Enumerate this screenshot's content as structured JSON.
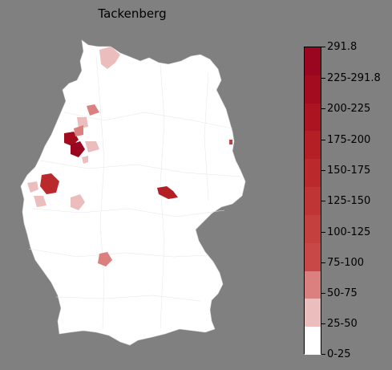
{
  "title": "Tackenberg",
  "legend": {
    "labels": [
      "0-25",
      "25-50",
      "50-75",
      "75-100",
      "100-125",
      "125-150",
      "150-175",
      "175-200",
      "200-225",
      "225-291.8",
      "291.8"
    ],
    "colors": [
      "#ffffff",
      "#ebbdbd",
      "#db7f7f",
      "#c84848",
      "#c4403f",
      "#bf3536",
      "#ba2a2c",
      "#b41f25",
      "#ac1421",
      "#a30c1e",
      "#9a0620"
    ]
  },
  "map": {
    "land_color": "#ffffff",
    "border_color": "#dddddd",
    "background": "#808080"
  }
}
